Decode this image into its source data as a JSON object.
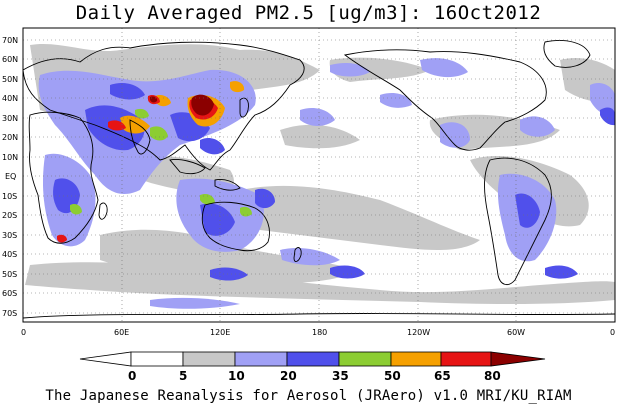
{
  "title": "Daily Averaged PM2.5 [ug/m3]: 16Oct2012",
  "footer": "The Japanese Reanalysis for Aerosol (JRAero) v1.0 MRI/KU_RIAM",
  "map": {
    "lat_labels": [
      "70N",
      "60N",
      "50N",
      "40N",
      "30N",
      "20N",
      "10N",
      "EQ",
      "10S",
      "20S",
      "30S",
      "40S",
      "50S",
      "60S",
      "70S"
    ],
    "lon_labels": [
      "0",
      "60E",
      "120E",
      "180",
      "120W",
      "60W",
      "0"
    ],
    "grid": "dotted"
  },
  "colorbar": {
    "levels": [
      "0",
      "5",
      "10",
      "20",
      "35",
      "50",
      "65",
      "80"
    ],
    "colors": [
      "#ffffff",
      "#c8c8c8",
      "#a0a0f5",
      "#5050eb",
      "#8ccd32",
      "#f5a000",
      "#e61414",
      "#8b0000"
    ]
  }
}
